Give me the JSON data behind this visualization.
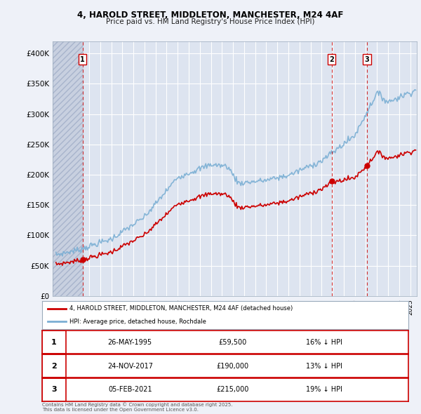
{
  "title": "4, HAROLD STREET, MIDDLETON, MANCHESTER, M24 4AF",
  "subtitle": "Price paid vs. HM Land Registry's House Price Index (HPI)",
  "ylim": [
    0,
    420000
  ],
  "yticks": [
    0,
    50000,
    100000,
    150000,
    200000,
    250000,
    300000,
    350000,
    400000
  ],
  "ytick_labels": [
    "£0",
    "£50K",
    "£100K",
    "£150K",
    "£200K",
    "£250K",
    "£300K",
    "£350K",
    "£400K"
  ],
  "background_color": "#eef1f8",
  "plot_bg_color": "#dde4f0",
  "legend_labels": [
    "4, HAROLD STREET, MIDDLETON, MANCHESTER, M24 4AF (detached house)",
    "HPI: Average price, detached house, Rochdale"
  ],
  "sale_color": "#cc0000",
  "hpi_color": "#7bafd4",
  "transactions": [
    {
      "date": 1995.4,
      "price": 59500,
      "label": "1"
    },
    {
      "date": 2017.9,
      "price": 190000,
      "label": "2"
    },
    {
      "date": 2021.09,
      "price": 215000,
      "label": "3"
    }
  ],
  "footer": "Contains HM Land Registry data © Crown copyright and database right 2025.\nThis data is licensed under the Open Government Licence v3.0.",
  "table_rows": [
    {
      "num": "1",
      "date": "26-MAY-1995",
      "price": "£59,500",
      "hpi": "16% ↓ HPI"
    },
    {
      "num": "2",
      "date": "24-NOV-2017",
      "price": "£190,000",
      "hpi": "13% ↓ HPI"
    },
    {
      "num": "3",
      "date": "05-FEB-2021",
      "price": "£215,000",
      "hpi": "19% ↓ HPI"
    }
  ],
  "xlim_start": 1992.7,
  "xlim_end": 2025.6
}
